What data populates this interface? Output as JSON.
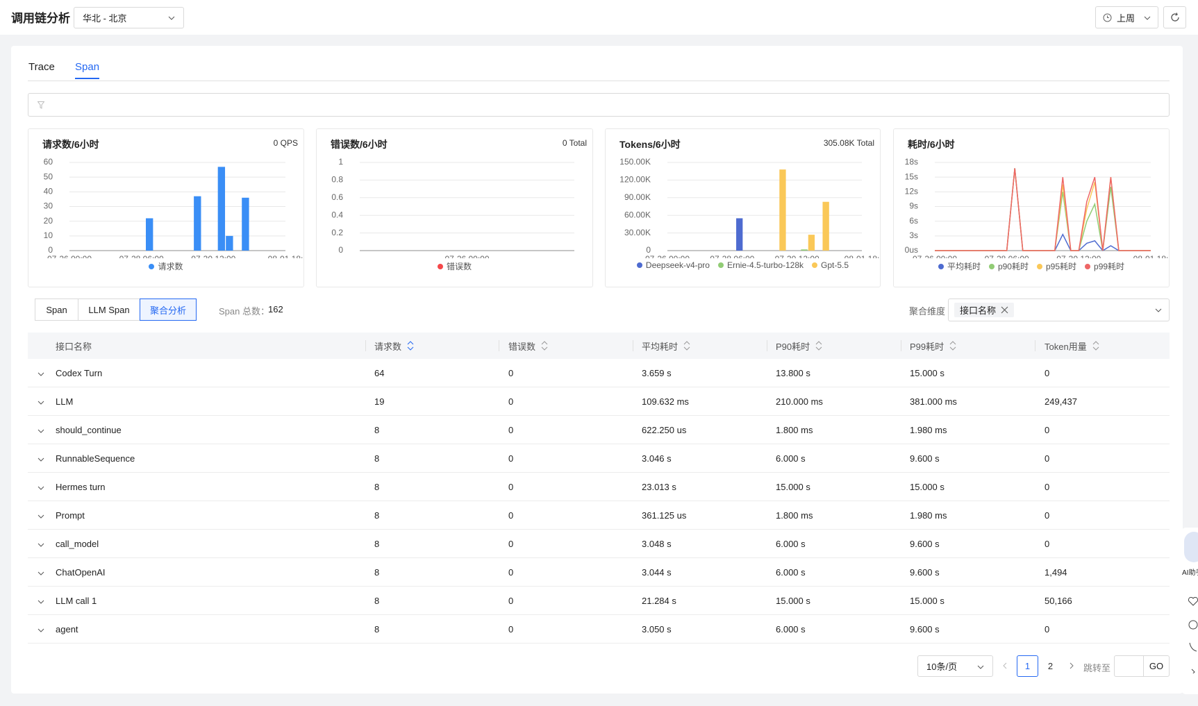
{
  "header": {
    "title": "调用链分析",
    "region": "华北 - 北京",
    "time_range": "上周"
  },
  "tabs": [
    "Trace",
    "Span"
  ],
  "chart_data": [
    {
      "type": "bar",
      "title": "请求数/6小时",
      "annotation": "0 QPS",
      "categories": [
        "07-26 00:00",
        null,
        null,
        null,
        null,
        null,
        null,
        null,
        null,
        "07-28 06:00",
        null,
        null,
        null,
        null,
        null,
        null,
        null,
        null,
        "07-30 12:00",
        null,
        null,
        null,
        null,
        null,
        null,
        null,
        null,
        "08-01 18:"
      ],
      "series": [
        {
          "name": "请求数",
          "color": "#3a8ef6",
          "values": [
            0,
            0,
            0,
            0,
            0,
            0,
            0,
            0,
            0,
            0,
            22,
            0,
            0,
            0,
            0,
            0,
            37,
            0,
            0,
            57,
            10,
            0,
            36,
            0,
            0,
            0,
            0,
            0
          ]
        }
      ],
      "ylim": [
        0,
        60
      ],
      "yticks": [
        0,
        10,
        20,
        30,
        40,
        50,
        60
      ]
    },
    {
      "type": "line",
      "title": "错误数/6小时",
      "annotation": "0 Total",
      "categories": [
        "07-26 00:00"
      ],
      "series": [
        {
          "name": "错误数",
          "color": "#f5484a",
          "values": [
            0
          ]
        }
      ],
      "ylim": [
        0,
        1
      ],
      "yticks": [
        0,
        0.2,
        0.4,
        0.6,
        0.8,
        1
      ]
    },
    {
      "type": "bar",
      "title": "Tokens/6小时",
      "annotation": "305.08K Total",
      "categories": [
        "07-26 00:00",
        null,
        null,
        null,
        null,
        null,
        null,
        null,
        null,
        "07-28 06:00",
        null,
        null,
        null,
        null,
        null,
        null,
        null,
        null,
        "07-30 12:00",
        null,
        null,
        null,
        null,
        null,
        null,
        null,
        null,
        "08-01 18:"
      ],
      "series": [
        {
          "name": "Deepseek-v4-pro",
          "color": "#4e6bd0",
          "values": [
            0,
            0,
            0,
            0,
            0,
            0,
            0,
            0,
            0,
            0,
            55000,
            0,
            0,
            0,
            0,
            0,
            0,
            0,
            0,
            0,
            0,
            0,
            0,
            0,
            0,
            0,
            0,
            0
          ]
        },
        {
          "name": "Ernie-4.5-turbo-128k",
          "color": "#91cc75",
          "values": [
            0,
            0,
            0,
            0,
            0,
            0,
            0,
            0,
            0,
            0,
            0,
            0,
            0,
            0,
            0,
            0,
            0,
            0,
            0,
            2000,
            0,
            0,
            0,
            0,
            0,
            0,
            0,
            0
          ]
        },
        {
          "name": "Gpt-5.5",
          "color": "#fac858",
          "values": [
            0,
            0,
            0,
            0,
            0,
            0,
            0,
            0,
            0,
            0,
            0,
            0,
            0,
            0,
            0,
            0,
            138000,
            0,
            0,
            0,
            27000,
            0,
            83000,
            0,
            0,
            0,
            0,
            0
          ]
        }
      ],
      "ylim": [
        0,
        150000
      ],
      "yticks": [
        0,
        {
          "value": 30000,
          "label": "30.00K"
        },
        {
          "value": 60000,
          "label": "60.00K"
        },
        {
          "value": 90000,
          "label": "90.00K"
        },
        {
          "value": 120000,
          "label": "120.00K"
        },
        {
          "value": 150000,
          "label": "150.00K"
        }
      ]
    },
    {
      "type": "line",
      "title": "耗时/6小时",
      "categories": [
        "07-26 00:00",
        null,
        null,
        null,
        null,
        null,
        null,
        null,
        null,
        "07-28 06:00",
        null,
        null,
        null,
        null,
        null,
        null,
        null,
        null,
        "07-30 12:00",
        null,
        null,
        null,
        null,
        null,
        null,
        null,
        null,
        "08-01 18:"
      ],
      "series": [
        {
          "name": "平均耗时",
          "color": "#4e6bd0",
          "values": [
            0,
            0,
            0,
            0,
            0,
            0,
            0,
            0,
            0,
            0,
            16.8,
            0,
            0,
            0,
            0,
            0,
            3.3,
            0,
            0,
            1.5,
            2,
            0,
            1,
            0,
            0,
            0,
            0,
            0
          ]
        },
        {
          "name": "p90耗时",
          "color": "#91cc75",
          "values": [
            0,
            0,
            0,
            0,
            0,
            0,
            0,
            0,
            0,
            0,
            16.8,
            0,
            0,
            0,
            0,
            0,
            12,
            0,
            0,
            6,
            9.5,
            0,
            13,
            0,
            0,
            0,
            0,
            0
          ]
        },
        {
          "name": "p95耗时",
          "color": "#fac858",
          "values": [
            0,
            0,
            0,
            0,
            0,
            0,
            0,
            0,
            0,
            0,
            16.8,
            0,
            0,
            0,
            0,
            0,
            13.5,
            0,
            0,
            8.5,
            14,
            0,
            15,
            0,
            0,
            0,
            0,
            0
          ]
        },
        {
          "name": "p99耗时",
          "color": "#ee6666",
          "values": [
            0,
            0,
            0,
            0,
            0,
            0,
            0,
            0,
            0,
            0,
            16.8,
            0,
            0,
            0,
            0,
            0,
            15,
            0,
            0,
            10,
            15,
            0,
            15,
            0,
            0,
            0,
            0,
            0
          ]
        }
      ],
      "ylim": [
        0,
        18
      ],
      "yticks": [
        {
          "value": 0,
          "label": "0us"
        },
        {
          "value": 3,
          "label": "3s"
        },
        {
          "value": 6,
          "label": "6s"
        },
        {
          "value": 9,
          "label": "9s"
        },
        {
          "value": 12,
          "label": "12s"
        },
        {
          "value": 15,
          "label": "15s"
        },
        {
          "value": 18,
          "label": "18s"
        }
      ]
    }
  ],
  "span_tabs": [
    "Span",
    "LLM Span",
    "聚合分析"
  ],
  "span_total": {
    "label": "Span 总数：",
    "value": 162
  },
  "group_by": {
    "label": "聚合维度",
    "tags": [
      "接口名称"
    ]
  },
  "table": {
    "columns": [
      "接口名称",
      "请求数",
      "错误数",
      "平均耗时",
      "P90耗时",
      "P99耗时",
      "Token用量"
    ],
    "rows": [
      [
        "Codex Turn",
        64,
        0,
        "3.659 s",
        "13.800 s",
        "15.000 s",
        0
      ],
      [
        "LLM",
        19,
        0,
        "109.632 ms",
        "210.000 ms",
        "381.000 ms",
        "249,437"
      ],
      [
        "should_continue",
        8,
        0,
        "622.250 us",
        "1.800 ms",
        "1.980 ms",
        0
      ],
      [
        "RunnableSequence",
        8,
        0,
        "3.046 s",
        "6.000 s",
        "9.600 s",
        0
      ],
      [
        "Hermes turn",
        8,
        0,
        "23.013 s",
        "15.000 s",
        "15.000 s",
        0
      ],
      [
        "Prompt",
        8,
        0,
        "361.125 us",
        "1.800 ms",
        "1.980 ms",
        0
      ],
      [
        "call_model",
        8,
        0,
        "3.048 s",
        "6.000 s",
        "9.600 s",
        0
      ],
      [
        "ChatOpenAI",
        8,
        0,
        "3.044 s",
        "6.000 s",
        "9.600 s",
        "1,494"
      ],
      [
        "LLM call 1",
        8,
        0,
        "21.284 s",
        "15.000 s",
        "15.000 s",
        "50,166"
      ],
      [
        "agent",
        8,
        0,
        "3.050 s",
        "6.000 s",
        "9.600 s",
        0
      ]
    ]
  },
  "pagination": {
    "page_size": "10条/页",
    "pages": [
      1,
      2
    ],
    "jump_label": "跳转至",
    "go": "GO"
  },
  "assistant": "AI助手"
}
